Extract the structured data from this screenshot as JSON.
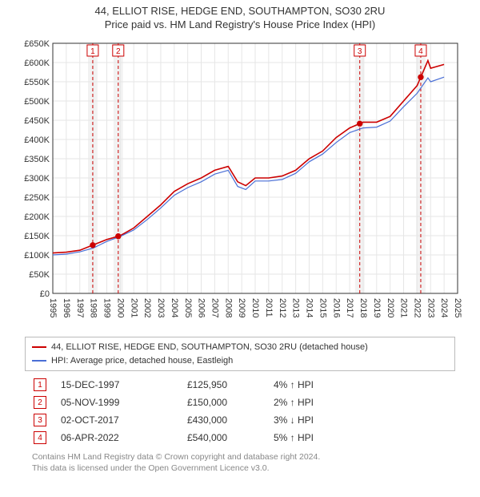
{
  "titles": {
    "main": "44, ELLIOT RISE, HEDGE END, SOUTHAMPTON, SO30 2RU",
    "sub": "Price paid vs. HM Land Registry's House Price Index (HPI)",
    "main_fontsize": 13,
    "sub_fontsize": 13
  },
  "chart": {
    "type": "line",
    "background_color": "#ffffff",
    "grid_color": "#e6e6e6",
    "axis_color": "#333333",
    "xlim": [
      1995,
      2025
    ],
    "ylim": [
      0,
      650000
    ],
    "ytick_step": 50000,
    "ytick_labels": [
      "£0",
      "£50K",
      "£100K",
      "£150K",
      "£200K",
      "£250K",
      "£300K",
      "£350K",
      "£400K",
      "£450K",
      "£500K",
      "£550K",
      "£600K",
      "£650K"
    ],
    "xticks": [
      1995,
      1996,
      1997,
      1998,
      1999,
      2000,
      2001,
      2002,
      2003,
      2004,
      2005,
      2006,
      2007,
      2008,
      2009,
      2010,
      2011,
      2012,
      2013,
      2014,
      2015,
      2016,
      2017,
      2018,
      2019,
      2020,
      2021,
      2022,
      2023,
      2024,
      2025
    ],
    "xtick_label_rotation": 90,
    "tick_fontsize": 11,
    "series": [
      {
        "name": "44, ELLIOT RISE, HEDGE END, SOUTHAMPTON, SO30 2RU (detached house)",
        "color": "#cc0000",
        "line_width": 1.6,
        "x": [
          1995,
          1996,
          1997,
          1998,
          1999,
          2000,
          2001,
          2002,
          2003,
          2004,
          2005,
          2006,
          2007,
          2008,
          2008.7,
          2009.3,
          2010,
          2011,
          2012,
          2013,
          2014,
          2015,
          2016,
          2017,
          2018,
          2019,
          2020,
          2021,
          2022,
          2022.8,
          2023,
          2024
        ],
        "y": [
          105000,
          107000,
          112000,
          125950,
          140000,
          150000,
          170000,
          200000,
          230000,
          265000,
          285000,
          300000,
          320000,
          330000,
          290000,
          280000,
          300000,
          300000,
          305000,
          320000,
          350000,
          370000,
          405000,
          430000,
          445000,
          445000,
          460000,
          500000,
          540000,
          605000,
          585000,
          595000
        ]
      },
      {
        "name": "HPI: Average price, detached house, Eastleigh",
        "color": "#4a6fd6",
        "line_width": 1.2,
        "x": [
          1995,
          1996,
          1997,
          1998,
          1999,
          2000,
          2001,
          2002,
          2003,
          2004,
          2005,
          2006,
          2007,
          2008,
          2008.7,
          2009.3,
          2010,
          2011,
          2012,
          2013,
          2014,
          2015,
          2016,
          2017,
          2018,
          2019,
          2020,
          2021,
          2022,
          2022.8,
          2023,
          2024
        ],
        "y": [
          100000,
          102000,
          108000,
          118000,
          135000,
          148000,
          165000,
          192000,
          222000,
          255000,
          275000,
          290000,
          310000,
          320000,
          278000,
          270000,
          292000,
          292000,
          296000,
          312000,
          342000,
          362000,
          392000,
          418000,
          430000,
          432000,
          448000,
          485000,
          520000,
          560000,
          550000,
          562000
        ]
      }
    ],
    "sale_markers": {
      "box_border_color": "#cc0000",
      "box_text_color": "#cc0000",
      "dot_color": "#cc0000",
      "dot_radius": 3.7,
      "vline_color": "#cc0000",
      "vline_dash": "4,3",
      "band_fill": "#f2f2f2",
      "band_half_width_years": 0.35,
      "items": [
        {
          "idx": "1",
          "x": 1997.96
        },
        {
          "idx": "2",
          "x": 1999.85
        },
        {
          "idx": "3",
          "x": 2017.75
        },
        {
          "idx": "4",
          "x": 2022.27
        }
      ]
    }
  },
  "legend": [
    {
      "color": "#cc0000",
      "label": "44, ELLIOT RISE, HEDGE END, SOUTHAMPTON, SO30 2RU (detached house)"
    },
    {
      "color": "#4a6fd6",
      "label": "HPI: Average price, detached house, Eastleigh"
    }
  ],
  "sales": [
    {
      "idx": "1",
      "date": "15-DEC-1997",
      "price": "£125,950",
      "delta": "4% ↑ HPI"
    },
    {
      "idx": "2",
      "date": "05-NOV-1999",
      "price": "£150,000",
      "delta": "2% ↑ HPI"
    },
    {
      "idx": "3",
      "date": "02-OCT-2017",
      "price": "£430,000",
      "delta": "3% ↓ HPI"
    },
    {
      "idx": "4",
      "date": "06-APR-2022",
      "price": "£540,000",
      "delta": "5% ↑ HPI"
    }
  ],
  "footer": {
    "line1": "Contains HM Land Registry data © Crown copyright and database right 2024.",
    "line2": "This data is licensed under the Open Government Licence v3.0."
  }
}
